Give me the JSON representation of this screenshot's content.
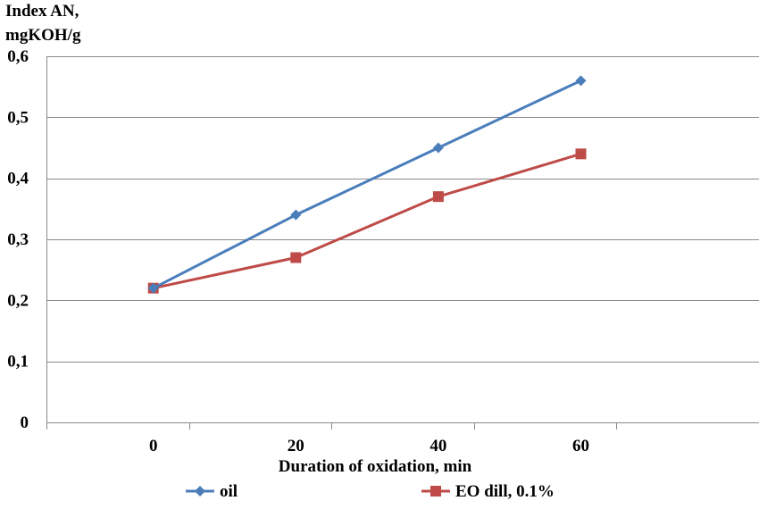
{
  "chart_data": {
    "type": "line",
    "title": "",
    "ylabel_lines": [
      "Index AN,",
      "mgKOH/g"
    ],
    "xlabel": "Duration of oxidation, min",
    "x": [
      0,
      20,
      40,
      60
    ],
    "x_tick_labels": [
      "0",
      "20",
      "40",
      "60"
    ],
    "ylim": [
      0,
      0.6
    ],
    "y_ticks": [
      0,
      0.1,
      0.2,
      0.3,
      0.4,
      0.5,
      0.6
    ],
    "y_tick_labels": [
      "0",
      "0,1",
      "0,2",
      "0,3",
      "0,4",
      "0,5",
      "0,6"
    ],
    "grid": "horizontal",
    "legend_position": "bottom",
    "series": [
      {
        "name": "oil",
        "values": [
          0.22,
          0.34,
          0.45,
          0.56
        ],
        "color": "#4a7ebb",
        "marker": "diamond"
      },
      {
        "name": "EO dill, 0.1%",
        "values": [
          0.22,
          0.27,
          0.37,
          0.44
        ],
        "color": "#be4b48",
        "marker": "square"
      }
    ]
  }
}
